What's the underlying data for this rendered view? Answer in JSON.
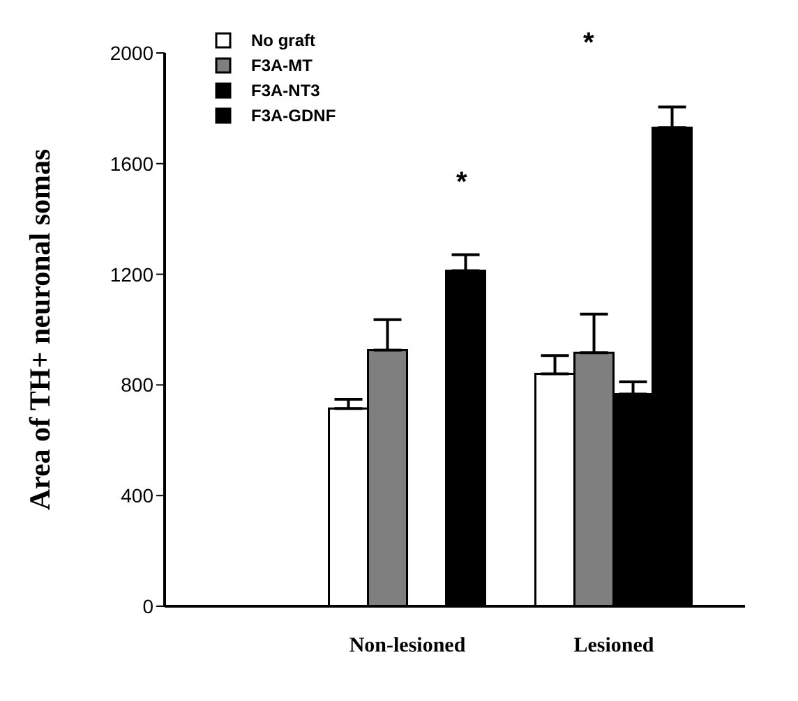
{
  "chart_data": {
    "type": "bar",
    "ylabel": "Area of TH+ neuronal somas",
    "categories": [
      "Non-lesioned",
      "Lesioned"
    ],
    "series": [
      {
        "name": "No graft",
        "color": "#ffffff",
        "values": [
          715,
          840
        ],
        "errors": [
          33,
          66
        ]
      },
      {
        "name": "F3A-MT",
        "color": "#7f7f7f",
        "values": [
          926,
          916
        ],
        "errors": [
          110,
          140
        ]
      },
      {
        "name": "F3A-NT3",
        "color": "#000000",
        "values": [
          null,
          767
        ],
        "errors": [
          null,
          44
        ]
      },
      {
        "name": "F3A-GDNF",
        "color": "#000000",
        "values": [
          1213,
          1730
        ],
        "errors": [
          58,
          75
        ]
      }
    ],
    "ylim": [
      0,
      2000
    ],
    "yticks": [
      0,
      400,
      800,
      1200,
      1600,
      2000
    ],
    "legend": "top left",
    "annotations": [
      "*",
      "*"
    ]
  }
}
